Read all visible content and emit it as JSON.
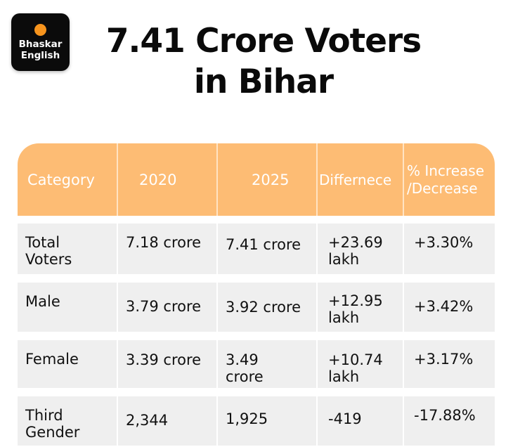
{
  "logo": {
    "line1": "Bhaskar",
    "line2": "English",
    "accent": "#f7941d"
  },
  "title": {
    "line1": "7.41 Crore Voters",
    "line2": "in Bihar"
  },
  "table": {
    "header_color": "#fdbc74",
    "headers": [
      "Category",
      "2020",
      "2025",
      "Differnece",
      "% Increase",
      "/Decrease"
    ],
    "rows": [
      {
        "category": [
          "Total",
          "Voters"
        ],
        "y2020": "7.18 crore",
        "y2025": "7.41 crore",
        "difference": [
          "+23.69",
          "lakh"
        ],
        "change": "+3.30%"
      },
      {
        "category": [
          "Male"
        ],
        "y2020": "3.79 crore",
        "y2025": "3.92 crore",
        "difference": [
          "+12.95",
          "lakh"
        ],
        "change": "+3.42%"
      },
      {
        "category": [
          "Female"
        ],
        "y2020": "3.39 crore",
        "y2025": [
          "3.49",
          "crore"
        ],
        "difference": [
          "+10.74",
          "lakh"
        ],
        "change": "+3.17%"
      },
      {
        "category": [
          "Third",
          "Gender"
        ],
        "y2020": "2,344",
        "y2025": "1,925",
        "difference": "-419",
        "change": "-17.88%"
      }
    ]
  }
}
